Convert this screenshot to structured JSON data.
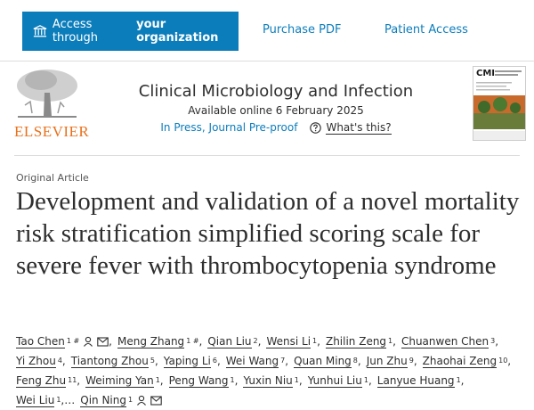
{
  "toolbar": {
    "access_prefix": "Access through",
    "access_bold": "your organization",
    "purchase": "Purchase PDF",
    "patient": "Patient Access"
  },
  "header": {
    "publisher": "ELSEVIER",
    "journal": "Clinical Microbiology and Infection",
    "available": "Available online 6 February 2025",
    "status": "In Press, Journal Pre-proof",
    "whats_this": "What's this?",
    "cover_title": "CMI"
  },
  "article": {
    "type": "Original Article",
    "title": "Development and validation of a novel mortality risk stratification simplified scoring scale for severe fever with thrombocytopenia syndrome",
    "separator": ",",
    "more": "…",
    "authors": [
      {
        "name": "Tao Chen",
        "sup": "1 #"
      },
      {
        "name": "Meng Zhang",
        "sup": "1 #"
      },
      {
        "name": "Qian Liu",
        "sup": "2"
      },
      {
        "name": "Wensi Li",
        "sup": "1"
      },
      {
        "name": "Zhilin Zeng",
        "sup": "1"
      },
      {
        "name": "Chuanwen Chen",
        "sup": "3"
      },
      {
        "name": "Yi Zhou",
        "sup": "4"
      },
      {
        "name": "Tiantong Zhou",
        "sup": "5"
      },
      {
        "name": "Yaping Li",
        "sup": "6"
      },
      {
        "name": "Wei Wang",
        "sup": "7"
      },
      {
        "name": "Quan Ming",
        "sup": "8"
      },
      {
        "name": "Jun Zhu",
        "sup": "9"
      },
      {
        "name": "Zhaohai Zeng",
        "sup": "10"
      },
      {
        "name": "Feng Zhu",
        "sup": "11"
      },
      {
        "name": "Weiming Yan",
        "sup": "1"
      },
      {
        "name": "Peng Wang",
        "sup": "1"
      },
      {
        "name": "Yuxin Niu",
        "sup": "1"
      },
      {
        "name": "Yunhui Liu",
        "sup": "1"
      },
      {
        "name": "Lanyue Huang",
        "sup": "1"
      },
      {
        "name": "Wei Liu",
        "sup": "1"
      },
      {
        "name": "Qin Ning",
        "sup": "1"
      }
    ]
  }
}
